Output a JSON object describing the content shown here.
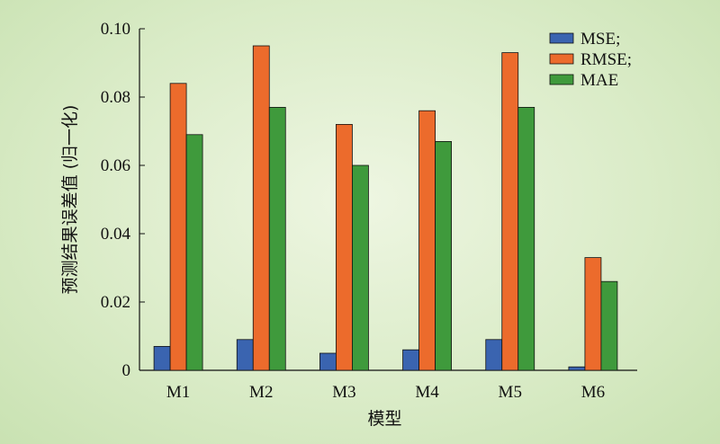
{
  "chart_data": {
    "type": "bar",
    "title": "",
    "xlabel": "模型",
    "ylabel": "预测结果误差值 (归一化)",
    "ylim": [
      0,
      0.1
    ],
    "yticks": [
      "0",
      "0.02",
      "0.04",
      "0.06",
      "0.08",
      "0.10"
    ],
    "ytick_values": [
      0,
      0.02,
      0.04,
      0.06,
      0.08,
      0.1
    ],
    "categories": [
      "M1",
      "M2",
      "M3",
      "M4",
      "M5",
      "M6"
    ],
    "series": [
      {
        "name": "MSE;",
        "color": "#3a64b0",
        "values": [
          0.007,
          0.009,
          0.005,
          0.006,
          0.009,
          0.001
        ]
      },
      {
        "name": "RMSE;",
        "color": "#ec6b2c",
        "values": [
          0.084,
          0.095,
          0.072,
          0.076,
          0.093,
          0.033
        ]
      },
      {
        "name": "MAE",
        "color": "#3f9a3c",
        "values": [
          0.069,
          0.077,
          0.06,
          0.067,
          0.077,
          0.026
        ]
      }
    ],
    "legend_position": "top-right",
    "grid": false
  }
}
